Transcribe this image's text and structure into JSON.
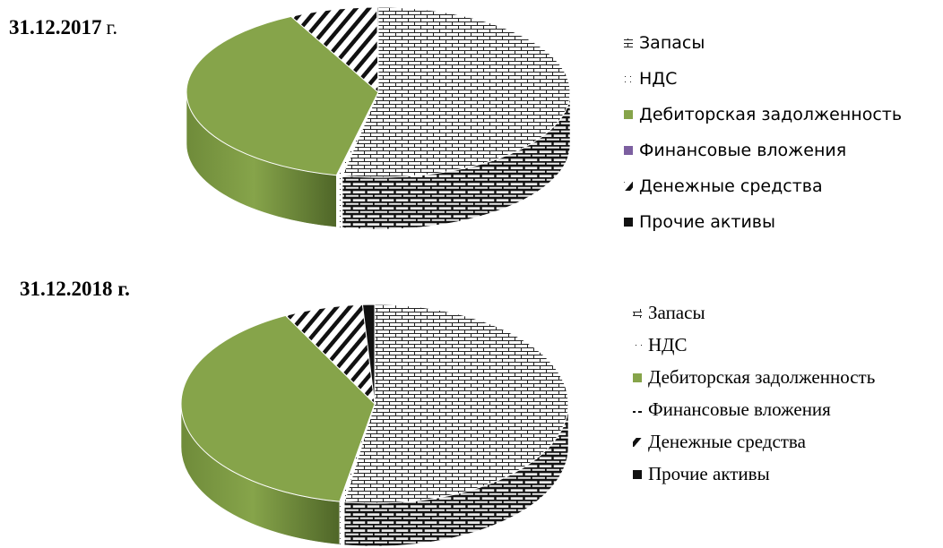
{
  "chart_data": [
    {
      "type": "pie",
      "title": "31.12.2017",
      "title_suffix": "г.",
      "categories": [
        "Запасы",
        "НДС",
        "Дебиторская задолженность",
        "Финансовые вложения",
        "Денежные средства",
        "Прочие активы"
      ],
      "values": [
        53.0,
        0.5,
        39.0,
        0.0,
        7.4,
        0.1
      ],
      "patterns": [
        "brick",
        "dots",
        "solid-green",
        "solid-purple",
        "diag-stripes",
        "solid-black"
      ],
      "colors": {
        "Дебиторская задолженность": "#86a44a",
        "Финансовые вложения": "#7c5fa0"
      },
      "legend_position": "right"
    },
    {
      "type": "pie",
      "title": "31.12.2018 г.",
      "title_suffix": "",
      "categories": [
        "Запасы",
        "НДС",
        "Дебиторская задолженность",
        "Финансовые вложения",
        "Денежные средства",
        "Прочие активы"
      ],
      "values": [
        52.5,
        0.4,
        39.5,
        0.0,
        6.6,
        1.0
      ],
      "patterns": [
        "brick",
        "dots",
        "solid-green",
        "dashes",
        "diag-stripes",
        "solid-black"
      ],
      "colors": {
        "Дебиторская задолженность": "#86a44a"
      },
      "legend_position": "right"
    }
  ]
}
